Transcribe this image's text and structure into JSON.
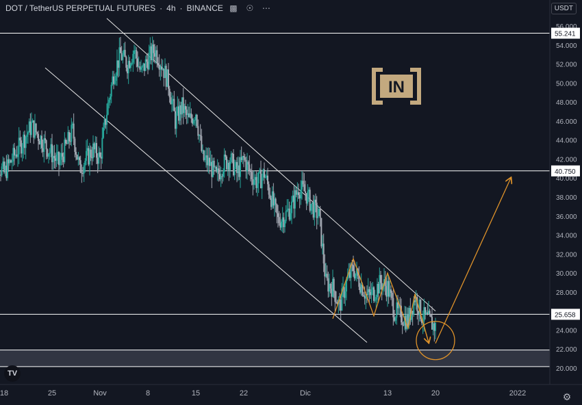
{
  "header": {
    "symbol": "DOT / TetherUS PERPETUAL FUTURES",
    "interval": "4h",
    "exchange": "BINANCE",
    "icons": [
      "layout-icon",
      "eye-icon",
      "more-icon"
    ]
  },
  "currency_label": "USDT",
  "watermark": "IN",
  "colors": {
    "background": "#131722",
    "candle_up": "#26a69a",
    "candle_down": "#a5aab4",
    "annotation": "#e0932a",
    "lines": "#ffffff",
    "axis_text": "#b2b5be"
  },
  "chart_data": {
    "type": "candlestick",
    "ylim": [
      19.2,
      57.2
    ],
    "yticks": [
      "56.000",
      "54.000",
      "52.000",
      "50.000",
      "48.000",
      "46.000",
      "44.000",
      "42.000",
      "40.000",
      "38.000",
      "36.000",
      "34.000",
      "32.000",
      "30.000",
      "28.000",
      "26.000",
      "24.000",
      "22.000",
      "20.000"
    ],
    "xticks": [
      {
        "label": "18",
        "date": "2021-10-18"
      },
      {
        "label": "25",
        "date": "2021-10-25"
      },
      {
        "label": "Nov",
        "date": "2021-11-01"
      },
      {
        "label": "8",
        "date": "2021-11-08"
      },
      {
        "label": "15",
        "date": "2021-11-15"
      },
      {
        "label": "22",
        "date": "2021-11-22"
      },
      {
        "label": "Dic",
        "date": "2021-12-01"
      },
      {
        "label": "13",
        "date": "2021-12-13"
      },
      {
        "label": "20",
        "date": "2021-12-20"
      },
      {
        "label": "2022",
        "date": "2022-01-01"
      }
    ],
    "xlim": [
      "2021-10-18",
      "2022-01-01"
    ],
    "price_labels": [
      {
        "value": 55.241,
        "text": "55.241"
      },
      {
        "value": 40.75,
        "text": "40.750"
      },
      {
        "value": 25.658,
        "text": "25.658"
      }
    ],
    "horizontal_lines": [
      55.241,
      40.75,
      25.658,
      21.9,
      20.15
    ],
    "support_zone": [
      20.15,
      21.9
    ],
    "channel_upper": [
      {
        "date": "2021-11-02",
        "value": 56.8
      },
      {
        "date": "2021-12-20",
        "value": 26.0
      }
    ],
    "channel_lower": [
      {
        "date": "2021-10-24",
        "value": 51.6
      },
      {
        "date": "2021-12-10",
        "value": 22.7
      }
    ],
    "price_path": [
      {
        "date": "2021-10-16",
        "value": 42.5
      },
      {
        "date": "2021-10-18",
        "value": 40.5
      },
      {
        "date": "2021-10-20",
        "value": 43.0
      },
      {
        "date": "2021-10-22",
        "value": 45.5
      },
      {
        "date": "2021-10-24",
        "value": 43.5
      },
      {
        "date": "2021-10-26",
        "value": 41.5
      },
      {
        "date": "2021-10-28",
        "value": 45.0
      },
      {
        "date": "2021-10-29",
        "value": 41.0
      },
      {
        "date": "2021-10-31",
        "value": 43.0
      },
      {
        "date": "2021-11-01",
        "value": 42.0
      },
      {
        "date": "2021-11-02",
        "value": 47.0
      },
      {
        "date": "2021-11-03",
        "value": 51.0
      },
      {
        "date": "2021-11-04",
        "value": 53.0
      },
      {
        "date": "2021-11-05",
        "value": 52.0
      },
      {
        "date": "2021-11-06",
        "value": 53.5
      },
      {
        "date": "2021-11-07",
        "value": 51.0
      },
      {
        "date": "2021-11-08",
        "value": 52.5
      },
      {
        "date": "2021-11-09",
        "value": 53.5
      },
      {
        "date": "2021-11-10",
        "value": 52.0
      },
      {
        "date": "2021-11-11",
        "value": 50.0
      },
      {
        "date": "2021-11-12",
        "value": 46.0
      },
      {
        "date": "2021-11-13",
        "value": 47.5
      },
      {
        "date": "2021-11-14",
        "value": 46.0
      },
      {
        "date": "2021-11-15",
        "value": 47.0
      },
      {
        "date": "2021-11-16",
        "value": 42.0
      },
      {
        "date": "2021-11-17",
        "value": 41.5
      },
      {
        "date": "2021-11-18",
        "value": 40.0
      },
      {
        "date": "2021-11-19",
        "value": 41.5
      },
      {
        "date": "2021-11-20",
        "value": 42.0
      },
      {
        "date": "2021-11-21",
        "value": 40.5
      },
      {
        "date": "2021-11-22",
        "value": 42.0
      },
      {
        "date": "2021-11-23",
        "value": 40.5
      },
      {
        "date": "2021-11-24",
        "value": 39.5
      },
      {
        "date": "2021-11-25",
        "value": 40.5
      },
      {
        "date": "2021-11-26",
        "value": 38.0
      },
      {
        "date": "2021-11-27",
        "value": 35.5
      },
      {
        "date": "2021-11-28",
        "value": 36.0
      },
      {
        "date": "2021-11-29",
        "value": 37.0
      },
      {
        "date": "2021-11-30",
        "value": 39.0
      },
      {
        "date": "2021-12-01",
        "value": 38.5
      },
      {
        "date": "2021-12-02",
        "value": 37.0
      },
      {
        "date": "2021-12-03",
        "value": 36.0
      },
      {
        "date": "2021-12-04",
        "value": 29.0
      },
      {
        "date": "2021-12-05",
        "value": 28.5
      },
      {
        "date": "2021-12-06",
        "value": 26.5
      },
      {
        "date": "2021-12-07",
        "value": 29.0
      },
      {
        "date": "2021-12-08",
        "value": 30.5
      },
      {
        "date": "2021-12-09",
        "value": 29.0
      },
      {
        "date": "2021-12-10",
        "value": 27.5
      },
      {
        "date": "2021-12-11",
        "value": 28.0
      },
      {
        "date": "2021-12-12",
        "value": 29.0
      },
      {
        "date": "2021-12-13",
        "value": 28.5
      },
      {
        "date": "2021-12-14",
        "value": 26.0
      },
      {
        "date": "2021-12-15",
        "value": 25.5
      },
      {
        "date": "2021-12-16",
        "value": 25.0
      },
      {
        "date": "2021-12-17",
        "value": 27.5
      },
      {
        "date": "2021-12-18",
        "value": 25.5
      },
      {
        "date": "2021-12-19",
        "value": 25.0
      },
      {
        "date": "2021-12-20",
        "value": 24.3
      }
    ],
    "zigzag": [
      {
        "date": "2021-12-05",
        "value": 25.2
      },
      {
        "date": "2021-12-08",
        "value": 31.5
      },
      {
        "date": "2021-12-11",
        "value": 25.5
      },
      {
        "date": "2021-12-13",
        "value": 30.0
      },
      {
        "date": "2021-12-16",
        "value": 24.2
      },
      {
        "date": "2021-12-17",
        "value": 27.8
      },
      {
        "date": "2021-12-19",
        "value": 22.7
      }
    ],
    "projection": [
      {
        "date": "2021-12-20",
        "value": 22.6
      },
      {
        "date": "2021-12-31",
        "value": 40.0
      }
    ],
    "target_circle": {
      "date": "2021-12-20",
      "value": 22.9
    }
  }
}
